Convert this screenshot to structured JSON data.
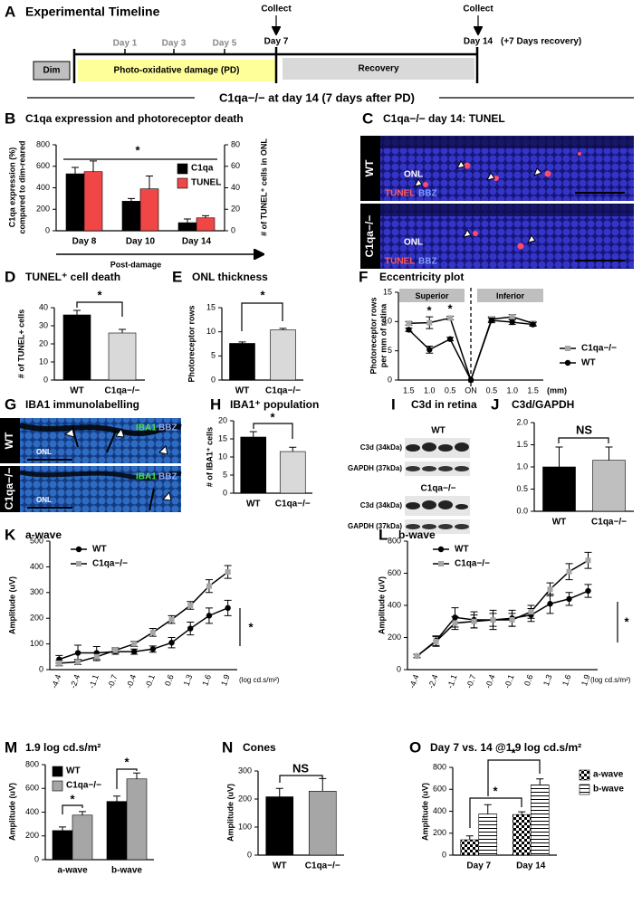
{
  "timeline": {
    "panel": "A",
    "title": "Experimental Timeline",
    "collect_1": "Collect",
    "collect_2": "Collect",
    "dim": "Dim",
    "days": [
      "Day 1",
      "Day 3",
      "Day 5"
    ],
    "day7": "Day 7",
    "day14": "Day 14",
    "recovery_note": "(+7 Days recovery)",
    "damage": "Photo-oxidative damage (PD)",
    "recovery": "Recovery",
    "subtitle": "C1qa−/− at day 14 (7 days after PD)"
  },
  "images": [
    {
      "panel": "C",
      "title": "C1qa−/− day 14: TUNEL",
      "rows": [
        {
          "label": "WT",
          "layer": "ONL",
          "stains": [
            "TUNEL",
            "BBZ"
          ]
        },
        {
          "label": "C1qa−/−",
          "layer": "ONL",
          "stains": [
            "TUNEL",
            "BBZ"
          ]
        }
      ]
    },
    {
      "panel": "G",
      "title": "IBA1 immunolabelling",
      "rows": [
        {
          "label": "WT",
          "layer": "ONL",
          "stains": [
            "IBA1",
            "BBZ"
          ]
        },
        {
          "label": "C1qa−/−",
          "layer": "ONL",
          "stains": [
            "IBA1",
            "BBZ"
          ]
        }
      ]
    },
    {
      "panel": "I",
      "title": "C3d in retina",
      "blots": [
        {
          "label": "WT",
          "bands": [
            "C3d (34kDa)",
            "GAPDH (37kDa)"
          ]
        },
        {
          "label": "C1qa−/−",
          "bands": [
            "C3d (34kDa)",
            "GAPDH (37kDa)"
          ]
        }
      ]
    }
  ],
  "chart_data": [
    {
      "panel": "B",
      "type": "bar",
      "title": "C1qa expression  and photoreceptor death",
      "ylabel": [
        "C1qa expression (%)",
        "compared to dim-reared"
      ],
      "y2label": "# of TUNEL⁺ cells in ONL",
      "xlabel": "Post-damage",
      "categories": [
        "Day 8",
        "Day 10",
        "Day 14"
      ],
      "series": [
        {
          "name": "C1qa",
          "color": "#000000",
          "values": [
            530,
            275,
            75
          ],
          "errors": [
            60,
            25,
            35
          ]
        },
        {
          "name": "TUNEL",
          "color": "#f04646",
          "values": [
            55,
            39,
            12
          ],
          "errors": [
            10,
            12,
            2
          ],
          "axis": "y2"
        }
      ],
      "ylim": [
        0,
        800
      ],
      "yticks": [
        0,
        200,
        400,
        600,
        800
      ],
      "y2lim": [
        0,
        80
      ],
      "y2ticks": [
        0,
        20,
        40,
        60,
        80
      ],
      "annotations": [
        "*"
      ]
    },
    {
      "panel": "D",
      "type": "bar",
      "title": "TUNEL⁺ cell death",
      "ylabel": [
        "# of TUNEL+ cells"
      ],
      "categories": [
        "WT",
        "C1qa−/−"
      ],
      "values": [
        36,
        26
      ],
      "errors": [
        2.5,
        2
      ],
      "colors": [
        "#000000",
        "#d9d9d9"
      ],
      "ylim": [
        0,
        40
      ],
      "yticks": [
        0,
        10,
        20,
        30,
        40
      ],
      "annotations": [
        "*"
      ]
    },
    {
      "panel": "E",
      "type": "bar",
      "title": "ONL thickness",
      "ylabel": [
        "Photoreceptor rows"
      ],
      "categories": [
        "WT",
        "C1qa−/−"
      ],
      "values": [
        7.6,
        10.4
      ],
      "errors": [
        0.3,
        0.3
      ],
      "colors": [
        "#000000",
        "#d9d9d9"
      ],
      "ylim": [
        0,
        15
      ],
      "yticks": [
        0,
        5,
        10,
        15
      ],
      "annotations": [
        "*"
      ]
    },
    {
      "panel": "F",
      "type": "line",
      "title": "Eccentricity plot",
      "ylabel": [
        "Photoreceptor rows",
        "per mm of retina"
      ],
      "xlabel": "(mm)",
      "categories": [
        "1.5",
        "1.0",
        "0.5",
        "ON",
        "0.5",
        "1.0",
        "1.5"
      ],
      "regions": [
        "Superior",
        "Inferior"
      ],
      "series": [
        {
          "name": "C1qa−/−",
          "color": "#a6a6a6",
          "marker": "square",
          "values": [
            9.7,
            9.8,
            10.6,
            0,
            10.4,
            10.8,
            9.7
          ],
          "errors": [
            0.3,
            1,
            0.3,
            0,
            0.4,
            0.4,
            0.3
          ]
        },
        {
          "name": "WT",
          "color": "#000000",
          "marker": "circle",
          "values": [
            8.6,
            5.2,
            7.0,
            0,
            10.2,
            9.9,
            9.5
          ],
          "errors": [
            0.3,
            0.6,
            0.3,
            0,
            0.4,
            0.4,
            0.3
          ]
        }
      ],
      "ylim": [
        0,
        15
      ],
      "yticks": [
        0,
        5,
        10,
        15
      ],
      "annotations": [
        "*",
        "*"
      ]
    },
    {
      "panel": "H",
      "type": "bar",
      "title": "IBA1⁺ population",
      "ylabel": [
        "# of IBA1⁺ cells"
      ],
      "categories": [
        "WT",
        "C1qa−/−"
      ],
      "values": [
        15.5,
        11.5
      ],
      "errors": [
        1.5,
        1.2
      ],
      "colors": [
        "#000000",
        "#d9d9d9"
      ],
      "ylim": [
        0,
        20
      ],
      "yticks": [
        0,
        5,
        10,
        15,
        20
      ],
      "annotations": [
        "*"
      ]
    },
    {
      "panel": "J",
      "type": "bar",
      "title": "C3d/GAPDH",
      "categories": [
        "WT",
        "C1qa−/−"
      ],
      "values": [
        1.0,
        1.15
      ],
      "errors": [
        0.45,
        0.3
      ],
      "colors": [
        "#000000",
        "#bfbfbf"
      ],
      "ylim": [
        0,
        2
      ],
      "yticks": [
        {
          "value": 0,
          "label": "0.0"
        },
        0.5,
        {
          "value": 1,
          "label": "1.0"
        },
        1.5,
        {
          "value": 2,
          "label": "2.0"
        }
      ],
      "annotations": [
        "NS"
      ]
    },
    {
      "panel": "K",
      "type": "line",
      "title": "a-wave",
      "ylabel": [
        "Amplitude (uV)"
      ],
      "xlabel": "(log cd.s/m²)",
      "categories": [
        "-4.4",
        "-2.4",
        "-1.1",
        "-0.7",
        "-0.4",
        "-0.1",
        "0.6",
        "1.3",
        "1.6",
        "1.9"
      ],
      "series": [
        {
          "name": "WT",
          "color": "#000000",
          "marker": "circle",
          "values": [
            40,
            65,
            65,
            70,
            70,
            80,
            105,
            160,
            210,
            240
          ],
          "errors": [
            15,
            30,
            25,
            10,
            10,
            12,
            20,
            25,
            30,
            30
          ]
        },
        {
          "name": "C1qa−/−",
          "color": "#a6a6a6",
          "marker": "square",
          "values": [
            25,
            30,
            50,
            75,
            100,
            145,
            195,
            250,
            325,
            380
          ],
          "errors": [
            10,
            10,
            15,
            10,
            10,
            15,
            15,
            15,
            25,
            25
          ]
        }
      ],
      "ylim": [
        0,
        500
      ],
      "yticks": [
        0,
        100,
        200,
        300,
        400,
        500
      ],
      "annotations": [
        "*"
      ]
    },
    {
      "panel": "L",
      "type": "line",
      "title": "b-wave",
      "ylabel": [
        "Amplitude (uV)"
      ],
      "xlabel": "(log cd.s/m²)",
      "categories": [
        "-4.4",
        "-2.4",
        "-1.1",
        "-0.7",
        "-0.4",
        "-0.1",
        "0.6",
        "1.3",
        "1.6",
        "1.9"
      ],
      "series": [
        {
          "name": "WT",
          "color": "#000000",
          "marker": "circle",
          "values": [
            85,
            180,
            325,
            310,
            310,
            320,
            340,
            410,
            440,
            490
          ],
          "errors": [
            10,
            30,
            60,
            50,
            60,
            50,
            40,
            60,
            40,
            40
          ]
        },
        {
          "name": "C1qa−/−",
          "color": "#a6a6a6",
          "marker": "square",
          "values": [
            85,
            175,
            290,
            300,
            310,
            310,
            360,
            500,
            610,
            680
          ],
          "errors": [
            10,
            30,
            40,
            40,
            40,
            40,
            40,
            40,
            50,
            50
          ]
        }
      ],
      "ylim": [
        0,
        800
      ],
      "yticks": [
        0,
        200,
        400,
        600,
        800
      ],
      "annotations": [
        "*"
      ]
    },
    {
      "panel": "M",
      "type": "bar",
      "title": "1.9 log cd.s/m²",
      "ylabel": [
        "Amplitude (uV)"
      ],
      "categories": [
        "a-wave",
        "b-wave"
      ],
      "series": [
        {
          "name": "WT",
          "color": "#000000",
          "values": [
            245,
            490
          ],
          "errors": [
            30,
            45
          ]
        },
        {
          "name": "C1qa−/−",
          "color": "#a6a6a6",
          "values": [
            375,
            680
          ],
          "errors": [
            30,
            50
          ]
        }
      ],
      "ylim": [
        0,
        800
      ],
      "yticks": [
        0,
        200,
        400,
        600,
        800
      ],
      "annotations": [
        "*",
        "*"
      ]
    },
    {
      "panel": "N",
      "type": "bar",
      "title": "Cones",
      "ylabel": [
        "Amplitude (uV)"
      ],
      "categories": [
        "WT",
        "C1qa−/−"
      ],
      "values": [
        208,
        228
      ],
      "errors": [
        30,
        45
      ],
      "colors": [
        "#000000",
        "#a6a6a6"
      ],
      "ylim": [
        0,
        300
      ],
      "yticks": [
        0,
        100,
        200,
        300
      ],
      "annotations": [
        "NS"
      ]
    },
    {
      "panel": "O",
      "type": "bar",
      "title": "Day 7 vs. 14 @1.9 log cd.s/m²",
      "ylabel": [
        "Amplitude (uV)"
      ],
      "categories": [
        "Day 7",
        "Day 14"
      ],
      "series": [
        {
          "name": "a-wave",
          "pattern": "checker",
          "values": [
            140,
            370
          ],
          "errors": [
            35,
            25
          ]
        },
        {
          "name": "b-wave",
          "pattern": "stripes",
          "values": [
            375,
            640
          ],
          "errors": [
            85,
            55
          ]
        }
      ],
      "ylim": [
        0,
        800
      ],
      "yticks": [
        0,
        200,
        400,
        600,
        800
      ],
      "annotations": [
        "*",
        "*"
      ]
    }
  ]
}
